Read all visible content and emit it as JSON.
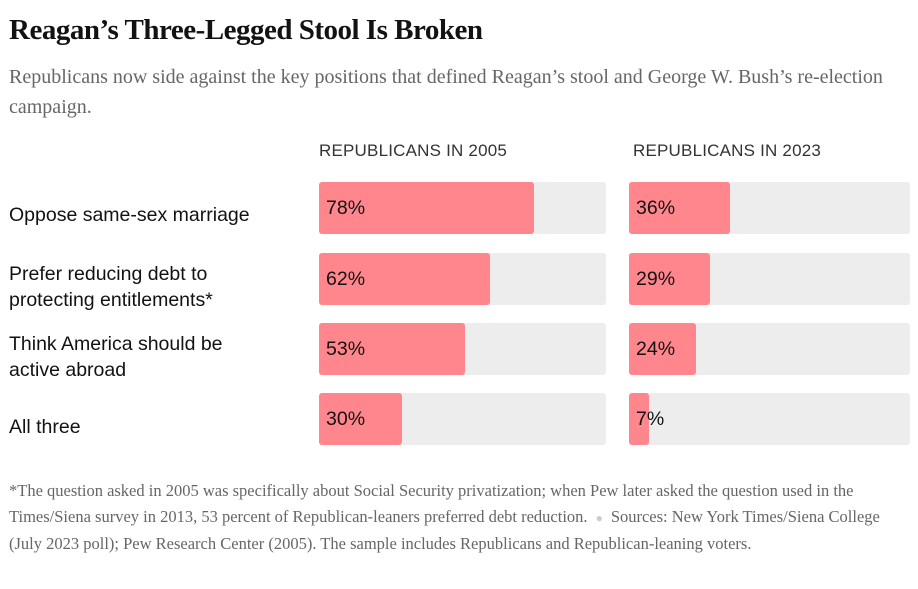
{
  "title": "Reagan’s Three-Legged Stool Is Broken",
  "subtitle": "Republicans now side against the key positions that defined Reagan’s stool and George W. Bush’s re-election campaign.",
  "footnote": "*The question asked in 2005 was specifically about Social Security privatization; when Pew later asked the question used in the Times/Siena survey in 2013, 53 percent of Republican-leaners preferred debt reduction.",
  "sources": "Sources: New York Times/Siena College (July 2023 poll); Pew Research Center (2005). The sample includes Republicans and Republican-leaning voters.",
  "colors": {
    "fill": "#ff868c",
    "track": "#ededed"
  },
  "chart_data": {
    "type": "bar",
    "title": "Reagan’s Three-Legged Stool Is Broken",
    "categories": [
      "Oppose same-sex marriage",
      "Prefer reducing debt to protecting entitlements*",
      "Think America should be active abroad",
      "All three"
    ],
    "series": [
      {
        "name": "REPUBLICANS IN 2005",
        "values": [
          78,
          62,
          53,
          30
        ],
        "labels": [
          "78%",
          "62%",
          "53%",
          "30%"
        ]
      },
      {
        "name": "REPUBLICANS IN 2023",
        "values": [
          36,
          29,
          24,
          7
        ],
        "labels": [
          "36%",
          "29%",
          "24%",
          "7%"
        ]
      }
    ],
    "xlim": [
      0,
      100
    ],
    "unit": "%"
  }
}
